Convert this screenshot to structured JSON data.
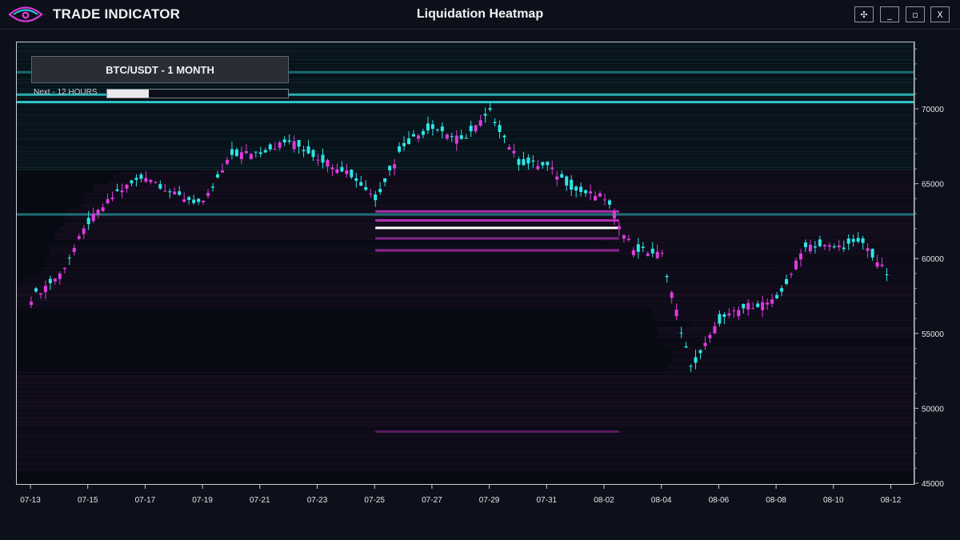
{
  "app": {
    "brand": "TRADE INDICATOR",
    "window_title": "Liquidation Heatmap",
    "window_buttons": {
      "move": "✣",
      "minimize": "_",
      "maximize": "▫",
      "close": "X"
    },
    "icons": {
      "logo": "eye-logo-icon"
    }
  },
  "panel": {
    "pair_label": "BTC/USDT - 1 MONTH",
    "next_label": "Next - 12 HOURS",
    "next_progress": 0.23
  },
  "colors": {
    "background": "#070a12",
    "bull": "#2ee6e6",
    "bear": "#e03ae0",
    "liq_high": "#2fd6d6",
    "liq_low": "#c23ac2",
    "hot": "#ffffff"
  },
  "chart_data": {
    "type": "heatmap",
    "title": "",
    "xlabel": "",
    "ylabel": "",
    "ylim": [
      45000,
      75500
    ],
    "y_ticks": [
      "45000",
      "50000",
      "55000",
      "60000",
      "65000",
      "70000"
    ],
    "x_ticks": [
      "07-13",
      "07-15",
      "07-17",
      "07-19",
      "07-21",
      "07-23",
      "07-25",
      "07-27",
      "07-29",
      "07-31",
      "08-02",
      "08-04",
      "08-06",
      "08-08",
      "08-10",
      "08-12"
    ],
    "series": [
      {
        "price_path": [
          [
            "07-13",
            57400
          ],
          [
            "07-14",
            59000
          ],
          [
            "07-15",
            62500
          ],
          [
            "07-16",
            64500
          ],
          [
            "07-17",
            65600
          ],
          [
            "07-18",
            64300
          ],
          [
            "07-19",
            63700
          ],
          [
            "07-20",
            67000
          ],
          [
            "07-21",
            67200
          ],
          [
            "07-22",
            67900
          ],
          [
            "07-23",
            66800
          ],
          [
            "07-24",
            65900
          ],
          [
            "07-25",
            64100
          ],
          [
            "07-26",
            67700
          ],
          [
            "07-27",
            68900
          ],
          [
            "07-28",
            67900
          ],
          [
            "07-29",
            69800
          ],
          [
            "07-30",
            66500
          ],
          [
            "07-31",
            66200
          ],
          [
            "08-01",
            64600
          ],
          [
            "08-02",
            64100
          ],
          [
            "08-03",
            60700
          ],
          [
            "08-04",
            60300
          ],
          [
            "08-05",
            52700
          ],
          [
            "08-06",
            55900
          ],
          [
            "08-07",
            56900
          ],
          [
            "08-08",
            57200
          ],
          [
            "08-09",
            61000
          ],
          [
            "08-10",
            60800
          ],
          [
            "08-11",
            61100
          ],
          [
            "08-12",
            58600
          ]
        ]
      }
    ],
    "liquidation_bands": [
      {
        "price": 70500,
        "intensity": 0.95,
        "side": "short"
      },
      {
        "price": 71000,
        "intensity": 0.8,
        "side": "short"
      },
      {
        "price": 72500,
        "intensity": 0.45,
        "side": "short"
      },
      {
        "price": 63000,
        "intensity": 0.5,
        "side": "short"
      },
      {
        "price": 63200,
        "intensity": 0.75,
        "side": "long"
      },
      {
        "price": 62600,
        "intensity": 0.8,
        "side": "long"
      },
      {
        "price": 62100,
        "intensity": 1.0,
        "side": "long"
      },
      {
        "price": 61400,
        "intensity": 0.55,
        "side": "long"
      },
      {
        "price": 60600,
        "intensity": 0.6,
        "side": "long"
      },
      {
        "price": 48500,
        "intensity": 0.35,
        "side": "long"
      }
    ]
  }
}
